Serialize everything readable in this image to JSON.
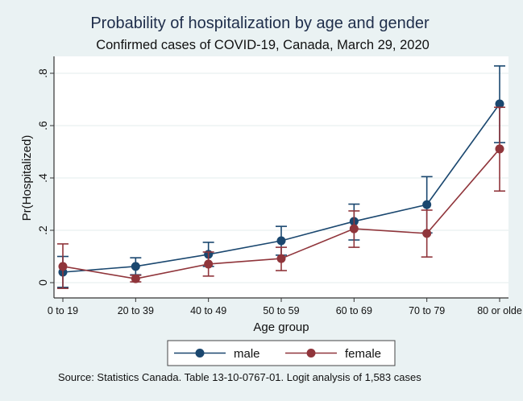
{
  "chart_data": {
    "type": "line",
    "title": "Probability of hospitalization by age and gender",
    "subtitle": "Confirmed cases of COVID-19, Canada, March 29, 2020",
    "xlabel": "Age group",
    "ylabel": "Pr(Hospitalized)",
    "categories": [
      "0 to 19",
      "20 to 39",
      "40 to 49",
      "50 to 59",
      "60 to 69",
      "70 to 79",
      "80 or olde"
    ],
    "yticks": [
      0,
      0.2,
      0.4,
      0.6,
      0.8
    ],
    "ytick_labels": [
      "0",
      ".2",
      ".4",
      ".6",
      ".8"
    ],
    "ylim": [
      -0.055,
      0.86
    ],
    "grid": true,
    "legend_position": "bottom",
    "series": [
      {
        "name": "male",
        "color": "#1a476f",
        "values": [
          0.04,
          0.062,
          0.108,
          0.16,
          0.234,
          0.298,
          0.683
        ],
        "ci_low": [
          -0.018,
          0.03,
          0.062,
          0.105,
          0.163,
          0.19,
          0.535
        ],
        "ci_high": [
          0.1,
          0.095,
          0.154,
          0.215,
          0.3,
          0.405,
          0.828
        ]
      },
      {
        "name": "female",
        "color": "#90353b",
        "values": [
          0.062,
          0.015,
          0.071,
          0.092,
          0.206,
          0.188,
          0.511
        ],
        "ci_low": [
          -0.022,
          0.003,
          0.025,
          0.046,
          0.135,
          0.098,
          0.35
        ],
        "ci_high": [
          0.148,
          0.028,
          0.117,
          0.135,
          0.274,
          0.277,
          0.67
        ]
      }
    ],
    "note": "Source: Statistics Canada. Table 13-10-0767-01. Logit analysis of 1,583 cases"
  }
}
